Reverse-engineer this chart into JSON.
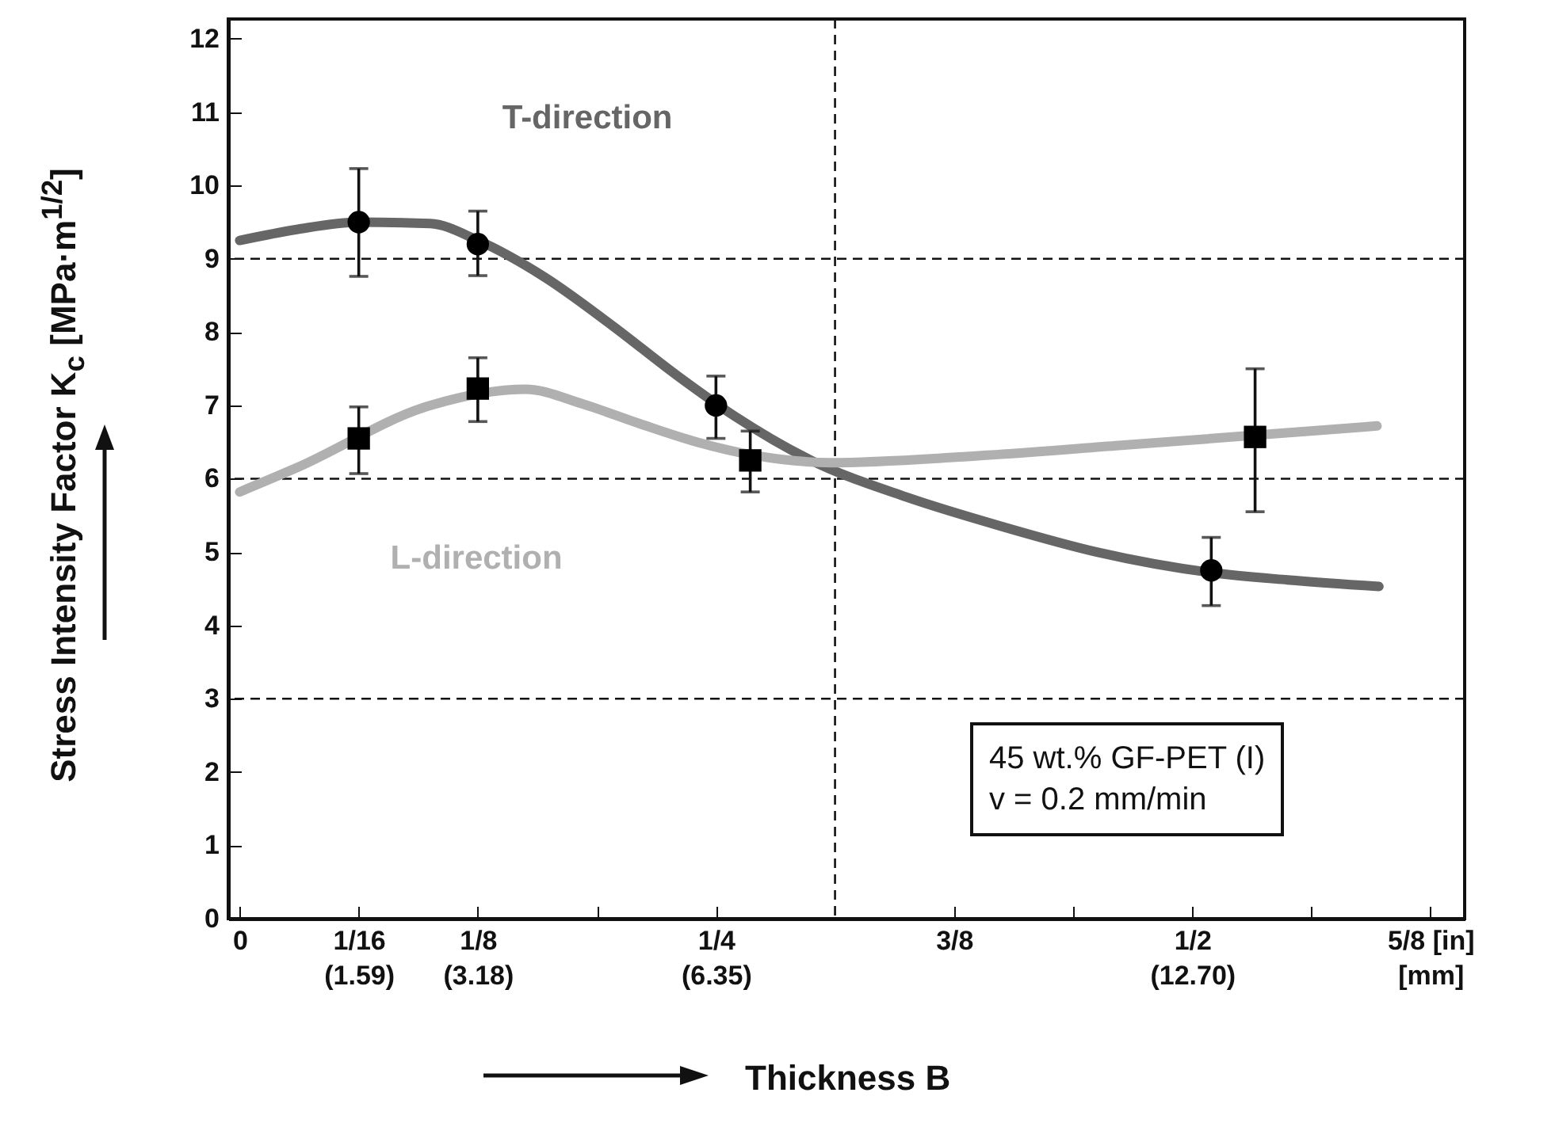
{
  "chart_data": {
    "type": "scatter",
    "xlabel": "Thickness B",
    "ylabel": "Stress Intensity Factor  K$_{c}$ [MPa·m$^{1/2}$]",
    "xlim": [
      -0.006,
      0.643
    ],
    "ylim": [
      0,
      12.27
    ],
    "xticks": [
      0,
      {
        "value": 0.0625,
        "label": "1/16\n(1.59)"
      },
      {
        "value": 0.125,
        "label": "1/8\n(3.18)"
      },
      {
        "value": 0.1875,
        "label": null
      },
      {
        "value": 0.25,
        "label": "1/4\n(6.35)"
      },
      {
        "value": 0.375,
        "label": "3/8"
      },
      {
        "value": 0.4375,
        "label": null
      },
      {
        "value": 0.5,
        "label": "1/2\n(12.70)"
      },
      {
        "value": 0.5625,
        "label": null
      },
      {
        "value": 0.625,
        "label": "5/8  [in]\n[mm]"
      }
    ],
    "yticks": [
      0,
      1,
      2,
      3,
      4,
      5,
      6,
      7,
      8,
      9,
      10,
      11,
      12
    ],
    "grid": false,
    "line_style": "solid",
    "ref_lines": [
      {
        "axis": "y",
        "value": 3,
        "line_style": "dashed"
      },
      {
        "axis": "y",
        "value": 6,
        "line_style": "dashed"
      },
      {
        "axis": "y",
        "value": 9,
        "line_style": "dashed"
      },
      {
        "axis": "x",
        "value": 0.3125,
        "line_style": "dashed"
      }
    ],
    "annotations": [
      "45 wt.% GF-PET (I)",
      "v = 0.2 mm/min"
    ],
    "series": [
      {
        "type": "line",
        "name": "T-direction",
        "color": "#666666",
        "x": [
          0,
          0.03,
          0.0625,
          0.1,
          0.125,
          0.16,
          0.195,
          0.23,
          0.26,
          0.3,
          0.35,
          0.4,
          0.45,
          0.51,
          0.55,
          0.598
        ],
        "values": [
          9.25,
          9.4,
          9.5,
          9.48,
          9.25,
          8.75,
          8.1,
          7.4,
          6.85,
          6.25,
          5.75,
          5.35,
          5.0,
          4.72,
          4.62,
          4.53
        ]
      },
      {
        "type": "line",
        "name": "L-direction",
        "color": "#b0b0b0",
        "x": [
          0,
          0.03,
          0.1,
          0.15,
          0.18,
          0.21,
          0.24,
          0.27,
          0.31,
          0.38,
          0.46,
          0.597
        ],
        "values": [
          5.82,
          6.15,
          7.0,
          7.22,
          7.02,
          6.75,
          6.5,
          6.32,
          6.22,
          6.3,
          6.45,
          6.72
        ]
      },
      {
        "marker": "circle",
        "color": "#000000",
        "x": [
          0.0625,
          0.125,
          0.25,
          0.51
        ],
        "values": [
          9.5,
          9.2,
          7.0,
          4.75
        ],
        "errors": [
          [
            8.76,
            10.23
          ],
          [
            8.77,
            9.65
          ],
          [
            6.55,
            7.4
          ],
          [
            4.27,
            5.2
          ]
        ]
      },
      {
        "marker": "square",
        "color": "#000000",
        "x": [
          0.0625,
          0.125,
          0.268,
          0.533
        ],
        "values": [
          6.55,
          7.23,
          6.25,
          6.57
        ],
        "errors": [
          [
            6.07,
            6.98
          ],
          [
            6.78,
            7.65
          ],
          [
            5.82,
            6.65
          ],
          [
            5.55,
            7.5
          ]
        ]
      }
    ]
  }
}
